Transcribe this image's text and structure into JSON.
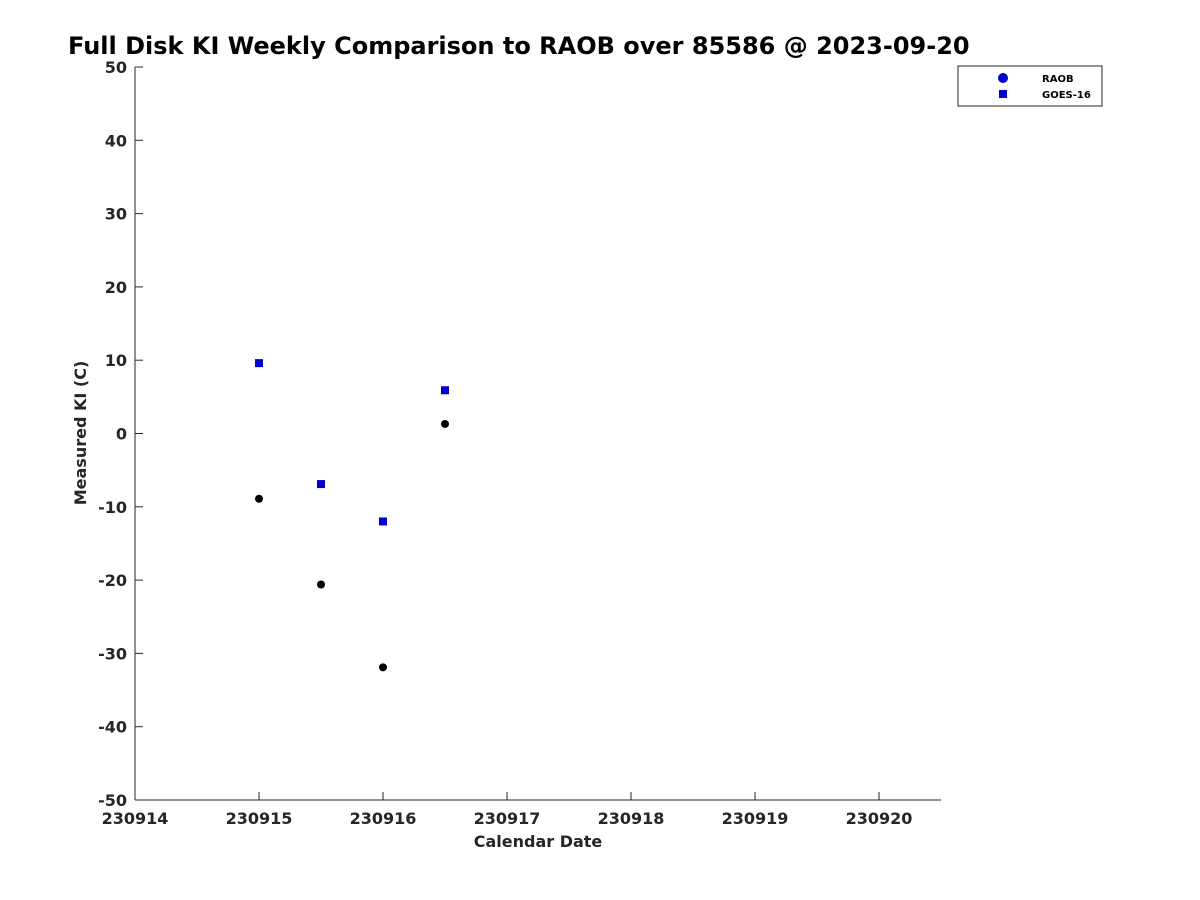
{
  "chart_data": {
    "type": "scatter",
    "title": "Full Disk KI Weekly Comparison to RAOB over 85586 @ 2023-09-20",
    "xlabel": "Calendar Date",
    "ylabel": "Measured KI (C)",
    "xlim": [
      230914,
      230920.5
    ],
    "ylim": [
      -50,
      50
    ],
    "xticks": [
      230914,
      230915,
      230916,
      230917,
      230918,
      230919,
      230920
    ],
    "xtick_labels": [
      "230914",
      "230915",
      "230916",
      "230917",
      "230918",
      "230919",
      "230920"
    ],
    "yticks": [
      -50,
      -40,
      -30,
      -20,
      -10,
      0,
      10,
      20,
      30,
      40,
      50
    ],
    "ytick_labels": [
      "-50",
      "-40",
      "-30",
      "-20",
      "-10",
      "0",
      "10",
      "20",
      "30",
      "40",
      "50"
    ],
    "grid": false,
    "legend_position": "top-right",
    "legend": [
      {
        "label": "RAOB",
        "marker": "circle",
        "color": "#0000cc"
      },
      {
        "label": "GOES-16",
        "marker": "square",
        "color": "#0000cc"
      }
    ],
    "series": [
      {
        "name": "RAOB",
        "marker": "circle",
        "color": "#000000",
        "x": [
          230915.0,
          230915.5,
          230916.0,
          230916.5
        ],
        "y": [
          -8.9,
          -20.6,
          -31.9,
          1.3
        ]
      },
      {
        "name": "GOES-16",
        "marker": "square",
        "color": "#0000cc",
        "x": [
          230915.0,
          230915.5,
          230916.0,
          230916.5
        ],
        "y": [
          9.6,
          -6.9,
          -12.0,
          5.9
        ]
      }
    ]
  }
}
